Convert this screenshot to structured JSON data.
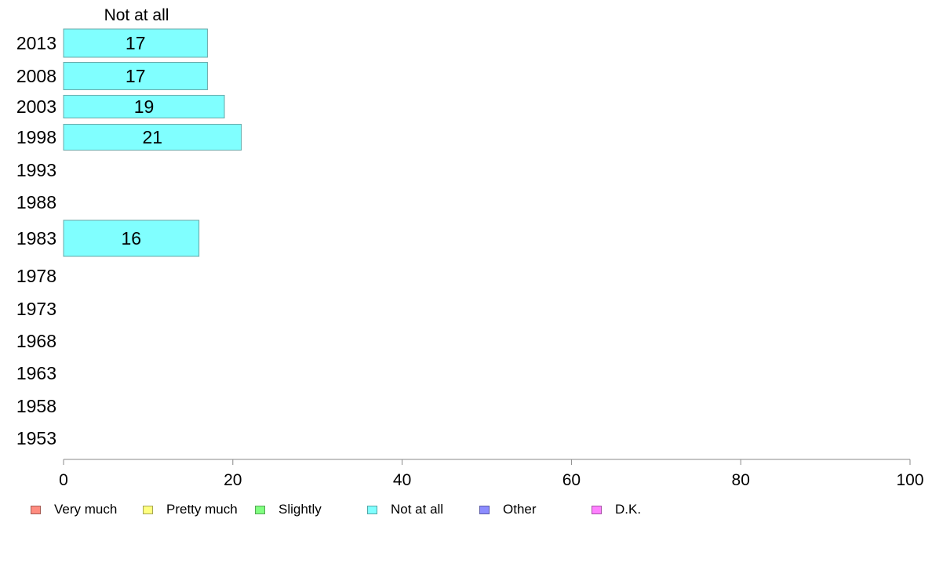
{
  "chart_data": {
    "type": "bar",
    "orientation": "horizontal",
    "categories": [
      "2013",
      "2008",
      "2003",
      "1998",
      "1993",
      "1988",
      "1983",
      "1978",
      "1973",
      "1968",
      "1963",
      "1958",
      "1953"
    ],
    "panel_title": "Not at all",
    "series": [
      {
        "name": "Not at all",
        "values": [
          17,
          17,
          19,
          21,
          null,
          null,
          16,
          null,
          null,
          null,
          null,
          null,
          null
        ]
      }
    ],
    "xlim": [
      0,
      100
    ],
    "xticks": [
      0,
      20,
      40,
      60,
      80,
      100
    ],
    "grid": false,
    "legend_position": "bottom"
  },
  "legend": [
    {
      "label": "Very much",
      "color": "#ff8c80"
    },
    {
      "label": "Pretty much",
      "color": "#ffff80"
    },
    {
      "label": "Slightly",
      "color": "#80ff80"
    },
    {
      "label": "Not at all",
      "color": "#80ffff"
    },
    {
      "label": "Other",
      "color": "#8c8cff"
    },
    {
      "label": "D.K.",
      "color": "#ff80ff"
    }
  ],
  "colors": {
    "bar_fill": "#80ffff",
    "bar_stroke": "#6aa8a8",
    "axis": "#888888"
  }
}
